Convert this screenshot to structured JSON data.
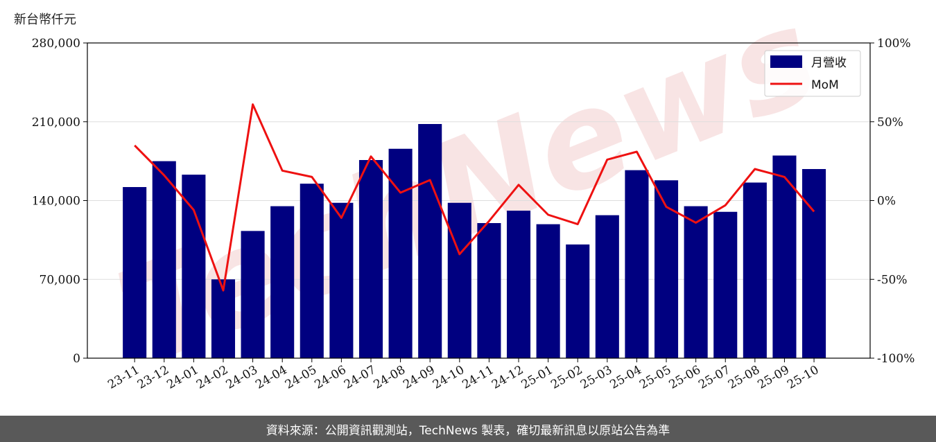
{
  "unit_label": "新台幣仟元",
  "watermark": "TechNews",
  "footer": "資料來源：公開資訊觀測站，TechNews 製表，確切最新訊息以原站公告為準",
  "colors": {
    "bar": "#000080",
    "line": "#ee1111",
    "grid": "#dddddd",
    "footer_bg": "#595959"
  },
  "chart_data": {
    "type": "bar",
    "categories": [
      "23-11",
      "23-12",
      "24-01",
      "24-02",
      "24-03",
      "24-04",
      "24-05",
      "24-06",
      "24-07",
      "24-08",
      "24-09",
      "24-10",
      "24-11",
      "24-12",
      "25-01",
      "25-02",
      "25-03",
      "25-04",
      "25-05",
      "25-06",
      "25-07",
      "25-08",
      "25-09",
      "25-10"
    ],
    "series": [
      {
        "name": "月營收",
        "type": "bar",
        "axis": "left",
        "values": [
          152000,
          175000,
          163000,
          70000,
          113000,
          135000,
          155000,
          138000,
          176000,
          186000,
          208000,
          138000,
          120000,
          131000,
          119000,
          101000,
          127000,
          167000,
          158000,
          135000,
          130000,
          156000,
          180000,
          168000
        ]
      },
      {
        "name": "MoM",
        "type": "line",
        "axis": "right",
        "values": [
          35,
          16,
          -6,
          -57,
          61,
          19,
          15,
          -11,
          28,
          5,
          13,
          -34,
          -13,
          10,
          -9,
          -15,
          26,
          31,
          -4,
          -14,
          -3,
          20,
          15,
          -7
        ]
      }
    ],
    "y_left": {
      "ylim": [
        0,
        280000
      ],
      "ticks": [
        "0",
        "70,000",
        "140,000",
        "210,000",
        "280,000"
      ],
      "tick_values": [
        0,
        70000,
        140000,
        210000,
        280000
      ]
    },
    "y_right": {
      "ylim": [
        -100,
        100
      ],
      "ticks": [
        "-100%",
        "-50%",
        "0%",
        "50%",
        "100%"
      ],
      "tick_values": [
        -100,
        -50,
        0,
        50,
        100
      ]
    },
    "grid": true,
    "legend": "top-right"
  }
}
